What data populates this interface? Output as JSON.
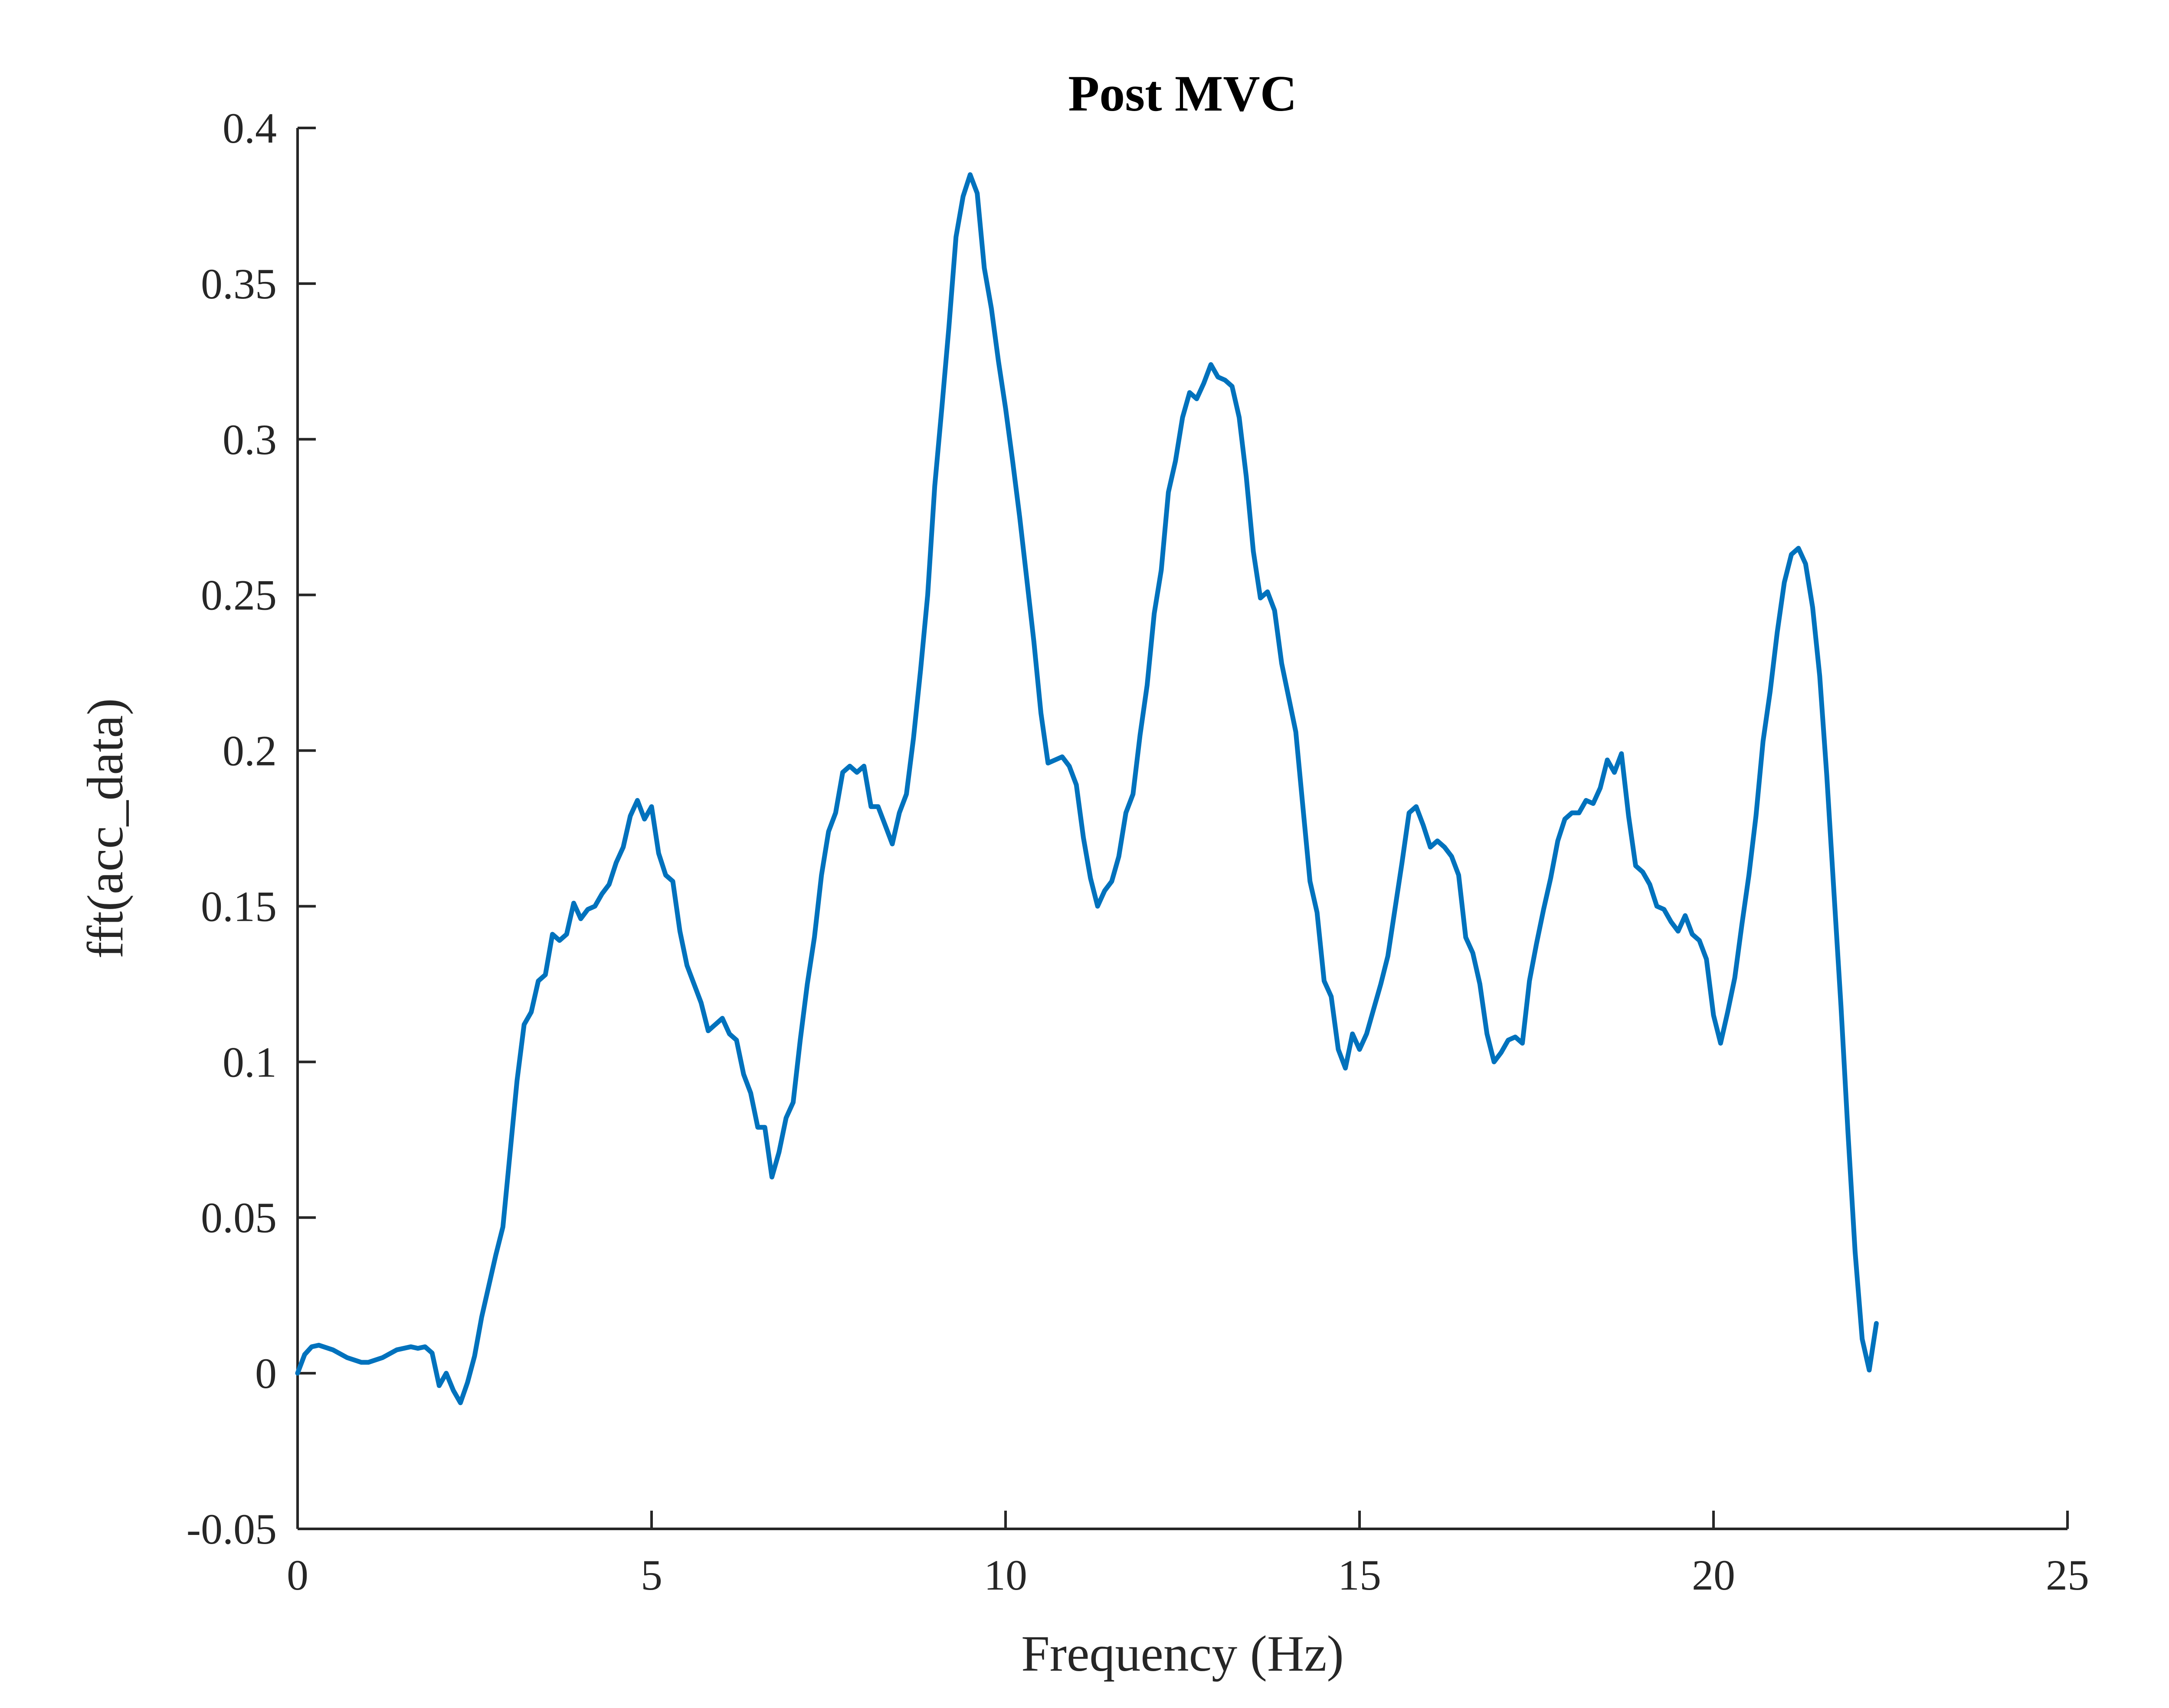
{
  "chart_data": {
    "type": "line",
    "title": "Post MVC",
    "xlabel": "Frequency (Hz)",
    "ylabel": "fft(acc_data)",
    "xlim": [
      0,
      25
    ],
    "ylim": [
      -0.05,
      0.4
    ],
    "xticks": [
      0,
      5,
      10,
      15,
      20,
      25
    ],
    "xtick_labels": [
      "0",
      "5",
      "10",
      "15",
      "20",
      "25"
    ],
    "yticks": [
      -0.05,
      0,
      0.05,
      0.1,
      0.15,
      0.2,
      0.25,
      0.3,
      0.35,
      0.4
    ],
    "ytick_labels": [
      "-0.05",
      "0",
      "0.05",
      "0.1",
      "0.15",
      "0.2",
      "0.25",
      "0.3",
      "0.35",
      "0.4"
    ],
    "grid": false,
    "line_color": "#0072BD",
    "series": [
      {
        "x": [
          0,
          0.1,
          0.2,
          0.3,
          0.5,
          0.7,
          0.9,
          1.0,
          1.2,
          1.4,
          1.6,
          1.7,
          1.8,
          1.9,
          2.0,
          2.1,
          2.2,
          2.3,
          2.4,
          2.5,
          2.6,
          2.8,
          2.9,
          3.1,
          3.2,
          3.3,
          3.4,
          3.5,
          3.6,
          3.7,
          3.8,
          3.9,
          4.0,
          4.1,
          4.2,
          4.3,
          4.4,
          4.5,
          4.6,
          4.7,
          4.8,
          4.9,
          5.0,
          5.1,
          5.2,
          5.3,
          5.4,
          5.5,
          5.6,
          5.7,
          5.8,
          5.9,
          6.0,
          6.1,
          6.2,
          6.3,
          6.4,
          6.5,
          6.6,
          6.7,
          6.8,
          6.9,
          7.0,
          7.1,
          7.2,
          7.3,
          7.4,
          7.5,
          7.6,
          7.7,
          7.8,
          7.9,
          8.0,
          8.1,
          8.2,
          8.3,
          8.4,
          8.5,
          8.6,
          8.7,
          8.8,
          8.9,
          9.0,
          9.1,
          9.2,
          9.3,
          9.4,
          9.5,
          9.6,
          9.7,
          9.8,
          9.9,
          10.0,
          10.1,
          10.2,
          10.3,
          10.4,
          10.5,
          10.6,
          10.7,
          10.8,
          10.9,
          11.0,
          11.1,
          11.2,
          11.3,
          11.4,
          11.5,
          11.6,
          11.7,
          11.8,
          11.9,
          12.0,
          12.1,
          12.2,
          12.3,
          12.4,
          12.5,
          12.6,
          12.7,
          12.8,
          12.9,
          13.0,
          13.1,
          13.2,
          13.3,
          13.4,
          13.5,
          13.6,
          13.7,
          13.8,
          13.9,
          14.0,
          14.1,
          14.2,
          14.3,
          14.4,
          14.5,
          14.6,
          14.7,
          14.8,
          14.9,
          15.0,
          15.1,
          15.2,
          15.3,
          15.4,
          15.5,
          15.6,
          15.7,
          15.8,
          15.9,
          16.0,
          16.1,
          16.2,
          16.3,
          16.4,
          16.5,
          16.6,
          16.7,
          16.8,
          16.9,
          17.0,
          17.1,
          17.2,
          17.3,
          17.4,
          17.5,
          17.6,
          17.7,
          17.8,
          17.9,
          18.0,
          18.1,
          18.2,
          18.3,
          18.4,
          18.5,
          18.6,
          18.7,
          18.8,
          18.9,
          19.0,
          19.1,
          19.2,
          19.3,
          19.4,
          19.5,
          19.6,
          19.7,
          19.8,
          19.9,
          20.0,
          20.1,
          20.2,
          20.3,
          20.4,
          20.5,
          20.6,
          20.7,
          20.8,
          20.9,
          21.0,
          21.1,
          21.2,
          21.3,
          21.4,
          21.5,
          21.6,
          21.7,
          21.8,
          21.9,
          22.0,
          22.1,
          22.2,
          22.3
        ],
        "y": [
          0.0,
          0.006,
          0.0085,
          0.009,
          0.0075,
          0.005,
          0.0035,
          0.0035,
          0.005,
          0.0075,
          0.0085,
          0.008,
          0.0085,
          0.0065,
          -0.004,
          0.0,
          -0.0055,
          -0.0095,
          -0.003,
          0.0055,
          0.018,
          0.038,
          0.047,
          0.094,
          0.112,
          0.116,
          0.126,
          0.128,
          0.141,
          0.139,
          0.141,
          0.151,
          0.146,
          0.149,
          0.15,
          0.154,
          0.157,
          0.164,
          0.169,
          0.179,
          0.184,
          0.178,
          0.182,
          0.167,
          0.16,
          0.158,
          0.142,
          0.131,
          0.125,
          0.119,
          0.11,
          0.112,
          0.114,
          0.109,
          0.107,
          0.096,
          0.09,
          0.079,
          0.079,
          0.063,
          0.071,
          0.082,
          0.087,
          0.107,
          0.125,
          0.14,
          0.16,
          0.174,
          0.18,
          0.193,
          0.195,
          0.193,
          0.195,
          0.182,
          0.182,
          0.176,
          0.17,
          0.18,
          0.186,
          0.204,
          0.226,
          0.25,
          0.285,
          0.31,
          0.336,
          0.365,
          0.378,
          0.385,
          0.379,
          0.355,
          0.342,
          0.325,
          0.31,
          0.293,
          0.275,
          0.255,
          0.235,
          0.212,
          0.196,
          0.197,
          0.198,
          0.195,
          0.189,
          0.172,
          0.159,
          0.15,
          0.155,
          0.158,
          0.166,
          0.18,
          0.186,
          0.205,
          0.221,
          0.244,
          0.258,
          0.283,
          0.293,
          0.307,
          0.315,
          0.313,
          0.318,
          0.324,
          0.32,
          0.319,
          0.317,
          0.307,
          0.288,
          0.264,
          0.249,
          0.251,
          0.245,
          0.228,
          0.217,
          0.206,
          0.182,
          0.158,
          0.148,
          0.126,
          0.121,
          0.104,
          0.098,
          0.109,
          0.104,
          0.109,
          0.117,
          0.125,
          0.134,
          0.149,
          0.164,
          0.18,
          0.182,
          0.176,
          0.169,
          0.171,
          0.169,
          0.166,
          0.16,
          0.14,
          0.135,
          0.125,
          0.109,
          0.1,
          0.103,
          0.107,
          0.108,
          0.106,
          0.126,
          0.138,
          0.149,
          0.159,
          0.171,
          0.178,
          0.18,
          0.18,
          0.184,
          0.183,
          0.188,
          0.197,
          0.193,
          0.199,
          0.179,
          0.163,
          0.161,
          0.157,
          0.15,
          0.149,
          0.145,
          0.142,
          0.147,
          0.141,
          0.139,
          0.133,
          0.115,
          0.106,
          0.116,
          0.127,
          0.144,
          0.16,
          0.179,
          0.203,
          0.219,
          0.238,
          0.254,
          0.263,
          0.265,
          0.26,
          0.246,
          0.224,
          0.192,
          0.155,
          0.118,
          0.077,
          0.039,
          0.011,
          0.001,
          0.016
        ]
      }
    ]
  }
}
